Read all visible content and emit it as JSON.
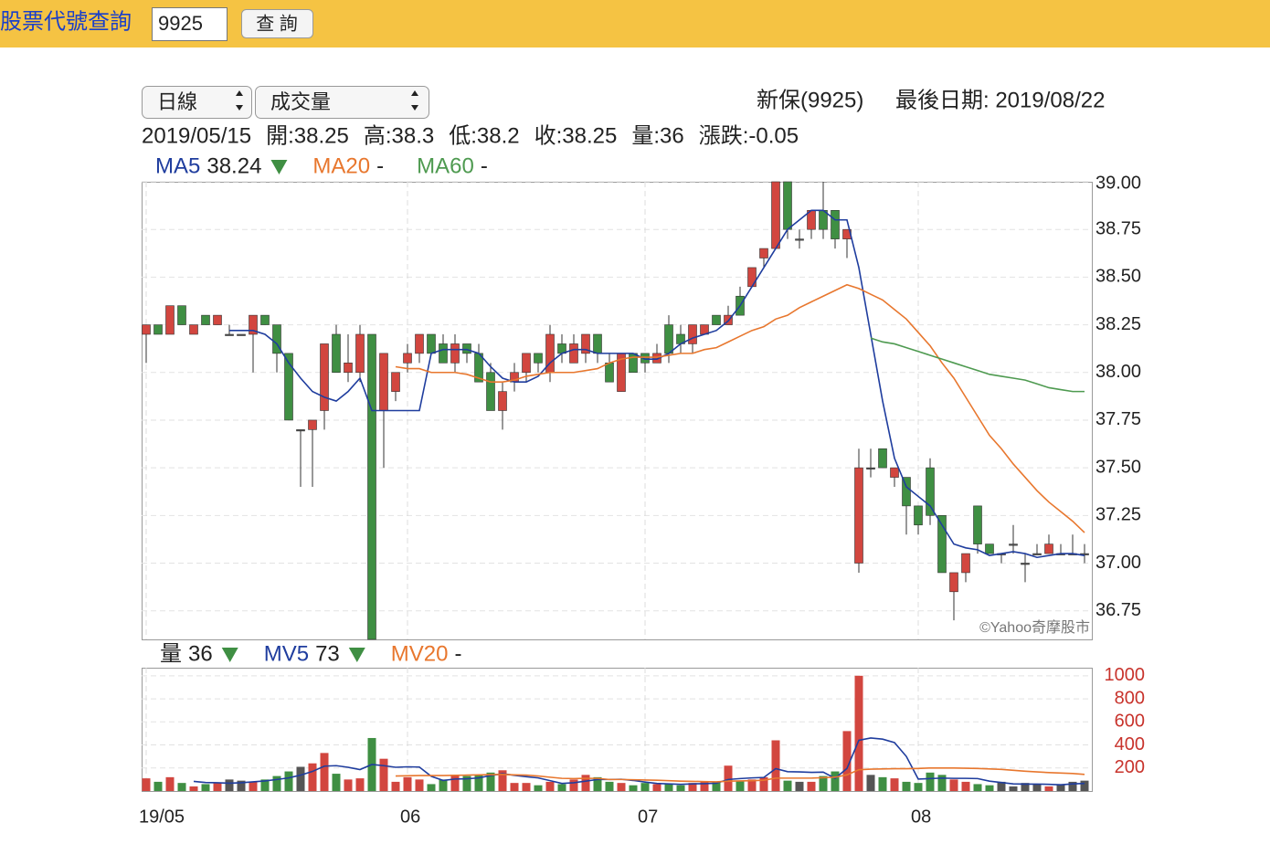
{
  "header": {
    "title": "股票代號查詢",
    "input": "9925",
    "button": "查 詢"
  },
  "toolbar": {
    "period": "日線",
    "indicator": "成交量",
    "stock": "新保(9925)",
    "last_date": "最後日期: 2019/08/22"
  },
  "info": [
    "2019/05/15",
    "開:38.25",
    "高:38.3",
    "低:38.2",
    "收:38.25",
    "量:36",
    "漲跌:-0.05"
  ],
  "chart_data": [
    {
      "type": "candlestick",
      "watermark": "©Yahoo奇摩股市",
      "up_color": "#d2463f",
      "down_color": "#3f8f43",
      "flat_color": "#555555",
      "grid": true,
      "ylim": [
        36.6,
        39.0
      ],
      "yticks": [
        {
          "value": 36.75,
          "label": "36.75"
        },
        {
          "value": 37,
          "label": "37.00"
        },
        {
          "value": 37.25,
          "label": "37.25"
        },
        {
          "value": 37.5,
          "label": "37.50"
        },
        {
          "value": 37.75,
          "label": "37.75"
        },
        {
          "value": 38,
          "label": "38.00"
        },
        {
          "value": 38.25,
          "label": "38.25"
        },
        {
          "value": 38.5,
          "label": "38.50"
        },
        {
          "value": 38.75,
          "label": "38.75"
        },
        {
          "value": 39,
          "label": "39.00"
        }
      ],
      "open": [
        38.2,
        38.25,
        38.2,
        38.35,
        38.2,
        38.3,
        38.25,
        38.2,
        38.2,
        38.2,
        38.3,
        38.25,
        38.1,
        37.7,
        37.7,
        37.8,
        38.2,
        38.0,
        38.0,
        38.2,
        37.8,
        37.9,
        38.05,
        38.1,
        38.2,
        38.15,
        38.05,
        38.15,
        38.1,
        38.0,
        37.8,
        37.95,
        38.0,
        38.1,
        38.0,
        38.15,
        38.05,
        38.1,
        38.2,
        38.05,
        37.9,
        38.1,
        38.1,
        38.05,
        38.25,
        38.2,
        38.15,
        38.2,
        38.3,
        38.25,
        38.4,
        38.45,
        38.6,
        38.65,
        39.0,
        38.7,
        38.75,
        38.85,
        38.85,
        38.7,
        37.0,
        37.5,
        37.6,
        37.45,
        37.45,
        37.3,
        37.5,
        37.25,
        36.85,
        36.95,
        37.3,
        37.1,
        37.05,
        37.1,
        37.0,
        37.05,
        37.05,
        37.05,
        37.05,
        37.05
      ],
      "high": [
        38.25,
        38.25,
        38.35,
        38.35,
        38.25,
        38.3,
        38.3,
        38.25,
        38.2,
        38.3,
        38.3,
        38.25,
        38.1,
        37.7,
        37.75,
        38.15,
        38.25,
        38.2,
        38.25,
        38.2,
        38.1,
        38.0,
        38.15,
        38.2,
        38.2,
        38.2,
        38.2,
        38.15,
        38.15,
        38.05,
        37.95,
        38.05,
        38.1,
        38.1,
        38.25,
        38.2,
        38.2,
        38.2,
        38.2,
        38.1,
        38.1,
        38.1,
        38.1,
        38.15,
        38.3,
        38.25,
        38.25,
        38.25,
        38.3,
        38.35,
        38.45,
        38.55,
        38.65,
        39.0,
        39.0,
        38.75,
        38.85,
        39.0,
        38.85,
        38.75,
        37.6,
        37.6,
        37.6,
        37.5,
        37.45,
        37.3,
        37.55,
        37.25,
        36.95,
        37.05,
        37.3,
        37.1,
        37.05,
        37.2,
        37.05,
        37.1,
        37.15,
        37.1,
        37.15,
        37.1
      ],
      "low": [
        38.05,
        38.2,
        38.2,
        38.25,
        38.2,
        38.25,
        38.25,
        38.2,
        38.2,
        38.0,
        38.25,
        38.0,
        37.75,
        37.4,
        37.4,
        37.7,
        38.0,
        37.95,
        37.95,
        36.6,
        37.5,
        37.85,
        38.0,
        38.05,
        38.1,
        38.05,
        38.0,
        38.05,
        37.95,
        37.8,
        37.7,
        37.9,
        37.95,
        38.0,
        37.95,
        38.05,
        38.05,
        38.05,
        38.05,
        37.95,
        37.9,
        38.0,
        38.0,
        38.05,
        38.05,
        38.1,
        38.1,
        38.2,
        38.25,
        38.25,
        38.3,
        38.45,
        38.55,
        38.65,
        38.7,
        38.65,
        38.7,
        38.7,
        38.65,
        38.6,
        36.95,
        37.45,
        37.5,
        37.4,
        37.15,
        37.15,
        37.2,
        36.95,
        36.7,
        36.9,
        37.05,
        37.05,
        37.0,
        37.05,
        36.9,
        37.05,
        37.05,
        37.05,
        37.05,
        37.0
      ],
      "close": [
        38.25,
        38.2,
        38.35,
        38.25,
        38.25,
        38.25,
        38.3,
        38.2,
        38.2,
        38.3,
        38.25,
        38.1,
        37.75,
        37.7,
        37.75,
        38.15,
        38.0,
        38.05,
        38.2,
        36.6,
        38.1,
        38.0,
        38.1,
        38.2,
        38.1,
        38.05,
        38.15,
        38.1,
        37.95,
        37.8,
        37.9,
        38.0,
        38.1,
        38.05,
        38.2,
        38.1,
        38.15,
        38.2,
        38.1,
        37.95,
        38.1,
        38.0,
        38.05,
        38.1,
        38.1,
        38.15,
        38.25,
        38.25,
        38.25,
        38.3,
        38.3,
        38.55,
        38.65,
        39.0,
        38.75,
        38.7,
        38.85,
        38.75,
        38.7,
        38.75,
        37.5,
        37.5,
        37.5,
        37.5,
        37.3,
        37.2,
        37.25,
        36.95,
        36.95,
        37.05,
        37.1,
        37.05,
        37.05,
        37.1,
        37.0,
        37.05,
        37.1,
        37.05,
        37.05,
        37.05
      ],
      "series": [
        {
          "name": "MA5",
          "color": "#1f3d9e",
          "legend_value": "38.24",
          "legend_trend": "down",
          "values": [
            null,
            null,
            null,
            null,
            null,
            null,
            null,
            38.22,
            38.22,
            38.22,
            38.2,
            38.15,
            38.05,
            37.97,
            37.9,
            37.87,
            37.85,
            37.9,
            37.97,
            37.8,
            37.8,
            37.8,
            37.8,
            37.8,
            38.1,
            38.12,
            38.12,
            38.12,
            38.1,
            38.03,
            37.97,
            37.95,
            37.95,
            37.98,
            38.05,
            38.1,
            38.12,
            38.12,
            38.1,
            38.1,
            38.1,
            38.1,
            38.07,
            38.07,
            38.1,
            38.15,
            38.18,
            38.2,
            38.22,
            38.27,
            38.35,
            38.45,
            38.55,
            38.65,
            38.75,
            38.8,
            38.85,
            38.85,
            38.8,
            38.8,
            38.55,
            38.2,
            37.85,
            37.55,
            37.4,
            37.35,
            37.3,
            37.2,
            37.1,
            37.08,
            37.07,
            37.04,
            37.05,
            37.06,
            37.05,
            37.03,
            37.04,
            37.05,
            37.05,
            37.04
          ]
        },
        {
          "name": "MA20",
          "color": "#e8772e",
          "legend_value": "-",
          "values": [
            null,
            null,
            null,
            null,
            null,
            null,
            null,
            null,
            null,
            null,
            null,
            null,
            null,
            null,
            null,
            null,
            null,
            null,
            null,
            null,
            null,
            38.03,
            38.02,
            38.02,
            38.0,
            38.0,
            38.0,
            37.99,
            37.97,
            37.95,
            37.95,
            37.96,
            37.98,
            37.99,
            38.0,
            38.0,
            38.0,
            38.01,
            38.02,
            38.05,
            38.07,
            38.08,
            38.08,
            38.08,
            38.09,
            38.1,
            38.1,
            38.12,
            38.13,
            38.16,
            38.19,
            38.22,
            38.24,
            38.28,
            38.3,
            38.34,
            38.37,
            38.4,
            38.43,
            38.46,
            38.44,
            38.41,
            38.38,
            38.33,
            38.28,
            38.21,
            38.14,
            38.05,
            37.97,
            37.87,
            37.77,
            37.67,
            37.6,
            37.52,
            37.45,
            37.38,
            37.32,
            37.27,
            37.22,
            37.16
          ]
        },
        {
          "name": "MA60",
          "color": "#4e9a50",
          "legend_value": "-",
          "values": [
            null,
            null,
            null,
            null,
            null,
            null,
            null,
            null,
            null,
            null,
            null,
            null,
            null,
            null,
            null,
            null,
            null,
            null,
            null,
            null,
            null,
            null,
            null,
            null,
            null,
            null,
            null,
            null,
            null,
            null,
            null,
            null,
            null,
            null,
            null,
            null,
            null,
            null,
            null,
            null,
            null,
            null,
            null,
            null,
            null,
            null,
            null,
            null,
            null,
            null,
            null,
            null,
            null,
            null,
            null,
            null,
            null,
            null,
            null,
            null,
            null,
            38.18,
            38.16,
            38.15,
            38.13,
            38.11,
            38.09,
            38.07,
            38.05,
            38.03,
            38.01,
            37.99,
            37.98,
            37.97,
            37.96,
            37.94,
            37.92,
            37.91,
            37.9,
            37.9
          ]
        }
      ]
    },
    {
      "type": "bar",
      "grid": true,
      "ylim": [
        0,
        1070
      ],
      "yticks": [
        200,
        400,
        600,
        800,
        1000
      ],
      "tick_color": "#c8332c",
      "categories": [
        "19/05",
        null,
        null,
        null,
        null,
        null,
        null,
        null,
        null,
        null,
        null,
        null,
        null,
        null,
        null,
        null,
        null,
        null,
        null,
        null,
        null,
        null,
        "06",
        null,
        null,
        null,
        null,
        null,
        null,
        null,
        null,
        null,
        null,
        null,
        null,
        null,
        null,
        null,
        null,
        null,
        null,
        null,
        "07",
        null,
        null,
        null,
        null,
        null,
        null,
        null,
        null,
        null,
        null,
        null,
        null,
        null,
        null,
        null,
        null,
        null,
        null,
        null,
        null,
        null,
        null,
        "08",
        null,
        null,
        null,
        null,
        null,
        null,
        null,
        null,
        null,
        null,
        null,
        null,
        null,
        null
      ],
      "series": [
        {
          "name": "量",
          "type": "bar",
          "color": "#222222",
          "legend_value": "36",
          "legend_trend": "down",
          "values": [
            110,
            80,
            120,
            70,
            40,
            60,
            70,
            100,
            90,
            80,
            100,
            130,
            170,
            210,
            240,
            330,
            150,
            100,
            110,
            460,
            280,
            80,
            120,
            100,
            60,
            100,
            140,
            130,
            140,
            160,
            180,
            70,
            70,
            50,
            80,
            60,
            100,
            140,
            120,
            80,
            70,
            50,
            70,
            60,
            60,
            50,
            70,
            80,
            80,
            220,
            90,
            100,
            120,
            440,
            90,
            80,
            80,
            130,
            170,
            520,
            1000,
            140,
            120,
            110,
            80,
            70,
            160,
            140,
            100,
            80,
            60,
            50,
            80,
            40,
            70,
            60,
            40,
            60,
            80,
            90
          ]
        },
        {
          "name": "MV5",
          "color": "#1f3d9e",
          "legend_value": "73",
          "legend_trend": "down",
          "values": [
            null,
            null,
            null,
            null,
            84,
            74,
            72,
            68,
            72,
            80,
            88,
            100,
            114,
            138,
            170,
            216,
            220,
            206,
            186,
            230,
            220,
            206,
            210,
            208,
            128,
            92,
            104,
            106,
            114,
            134,
            150,
            136,
            124,
            114,
            90,
            66,
            72,
            86,
            100,
            100,
            102,
            92,
            78,
            66,
            62,
            58,
            62,
            64,
            68,
            100,
            108,
            114,
            118,
            194,
            168,
            166,
            162,
            164,
            110,
            196,
            440,
            460,
            450,
            420,
            300,
            104,
            108,
            112,
            110,
            110,
            108,
            86,
            74,
            62,
            60,
            60,
            58,
            54,
            62,
            66
          ]
        },
        {
          "name": "MV20",
          "color": "#e8772e",
          "legend_value": "-",
          "values": [
            null,
            null,
            null,
            null,
            null,
            null,
            null,
            null,
            null,
            null,
            null,
            null,
            null,
            null,
            null,
            null,
            null,
            null,
            null,
            null,
            null,
            130,
            132,
            134,
            134,
            134,
            136,
            138,
            140,
            142,
            144,
            140,
            138,
            130,
            120,
            110,
            108,
            110,
            110,
            100,
            100,
            98,
            96,
            94,
            90,
            86,
            84,
            82,
            80,
            86,
            88,
            90,
            94,
            112,
            112,
            112,
            112,
            116,
            120,
            140,
            185,
            190,
            192,
            194,
            194,
            196,
            200,
            200,
            200,
            198,
            196,
            192,
            188,
            180,
            172,
            166,
            160,
            156,
            152,
            144
          ]
        }
      ]
    }
  ]
}
